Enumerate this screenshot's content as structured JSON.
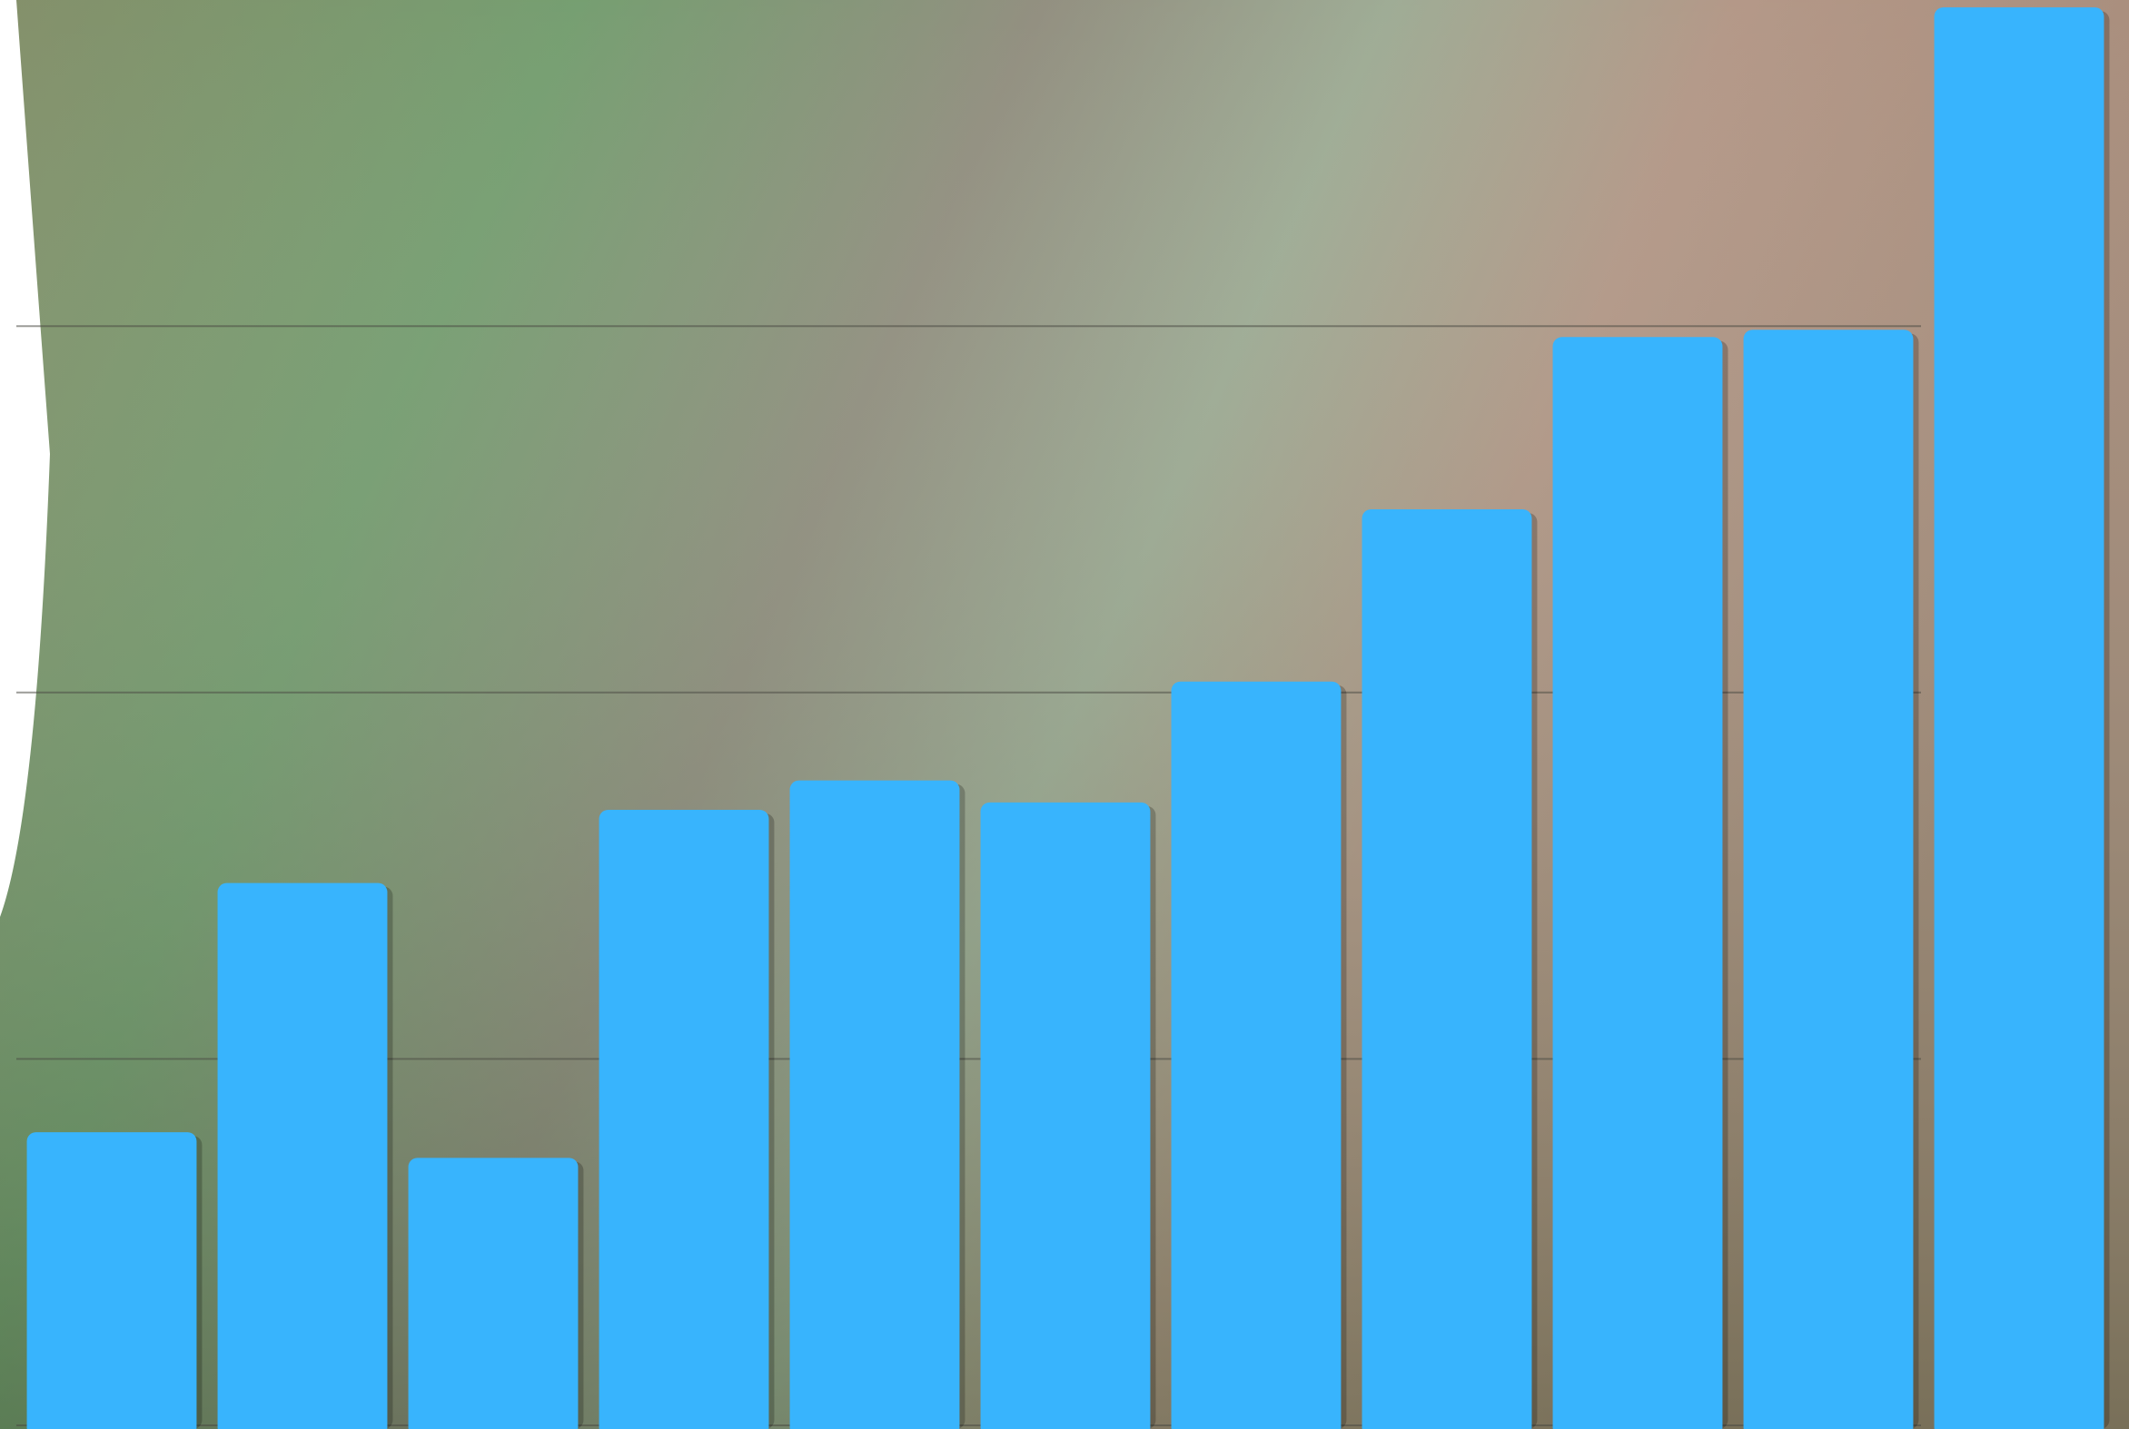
{
  "chart_data": {
    "type": "bar",
    "categories": [
      null,
      null,
      null,
      null,
      null,
      null,
      null,
      null,
      null,
      null,
      null
    ],
    "values": [
      8,
      14.8,
      7.3,
      16.8,
      17.6,
      17.0,
      20.3,
      25.0,
      29.7,
      29.9,
      38.7
    ],
    "color": "#38b4fd",
    "ylim": [
      0,
      38.9
    ],
    "yticks": [
      0,
      10,
      20,
      30
    ],
    "grid": true
  }
}
